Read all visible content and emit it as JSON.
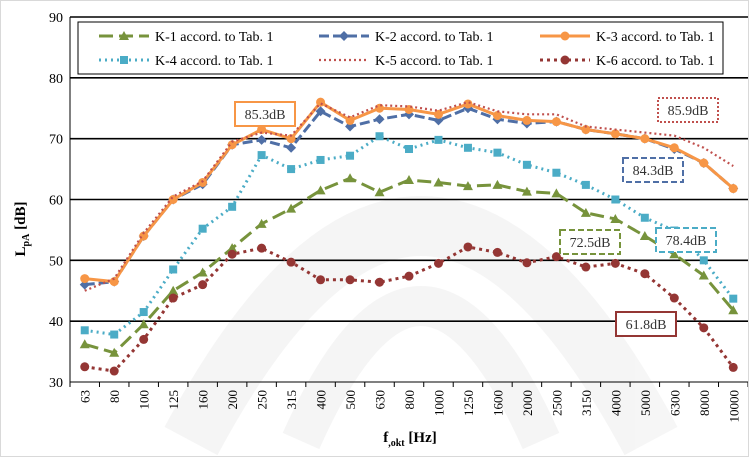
{
  "chart_data": {
    "type": "line",
    "title": "",
    "xlabel": "f,okt [Hz]",
    "ylabel": "LpA [dB]",
    "xlabel_parts": {
      "main": "f",
      "sub": ",okt",
      "unit": " [Hz]"
    },
    "ylabel_parts": {
      "main": "L",
      "sub": "pA",
      "unit": " [dB]"
    },
    "ylim": [
      30,
      90
    ],
    "yticks": [
      "30",
      "40",
      "50",
      "60",
      "70",
      "80",
      "90"
    ],
    "grid": "horizontal",
    "legend_position": "top",
    "categories": [
      "63",
      "80",
      "100",
      "125",
      "160",
      "200",
      "250",
      "315",
      "400",
      "500",
      "630",
      "800",
      "1000",
      "1250",
      "1600",
      "2000",
      "2500",
      "3150",
      "4000",
      "5000",
      "6300",
      "8000",
      "10000"
    ],
    "series": [
      {
        "name": "K-1 accord. to Tab. 1",
        "color": "#77933c",
        "dash": "14,6",
        "marker": "triangle",
        "values": [
          36.2,
          34.8,
          39.5,
          45.0,
          48.0,
          52.0,
          56.0,
          58.5,
          61.5,
          63.5,
          61.2,
          63.2,
          62.8,
          62.2,
          62.4,
          61.3,
          61.0,
          57.8,
          56.8,
          54.0,
          51.0,
          47.5,
          41.8
        ]
      },
      {
        "name": "K-2 accord. to Tab. 1",
        "color": "#4f6fa6",
        "dash": "10,4",
        "marker": "diamond",
        "values": [
          46.0,
          46.5,
          54.0,
          60.0,
          62.5,
          69.0,
          69.8,
          68.5,
          74.5,
          72.0,
          73.2,
          74.0,
          73.0,
          75.0,
          73.2,
          72.5,
          72.8,
          71.5,
          70.8,
          70.0,
          68.3,
          66.0,
          61.8
        ]
      },
      {
        "name": "K-3 accord. to Tab. 1",
        "color": "#f79646",
        "dash": "",
        "marker": "circle",
        "values": [
          47.0,
          46.5,
          54.0,
          60.0,
          62.8,
          69.0,
          71.5,
          70.0,
          76.0,
          73.0,
          75.0,
          74.8,
          74.0,
          75.7,
          73.8,
          73.0,
          72.8,
          71.5,
          70.8,
          70.0,
          68.5,
          66.0,
          61.8
        ]
      },
      {
        "name": "K-4 accord. to Tab. 1",
        "color": "#4bacc6",
        "dash": "2,4",
        "marker": "square",
        "values": [
          38.5,
          37.8,
          41.5,
          48.5,
          55.2,
          58.8,
          67.3,
          65.0,
          66.5,
          67.2,
          70.4,
          68.3,
          69.8,
          68.5,
          67.7,
          65.7,
          64.4,
          62.4,
          60.0,
          57.0,
          54.9,
          50.0,
          43.7
        ]
      },
      {
        "name": "K-5 accord. to Tab. 1",
        "color": "#c0504d",
        "dash": "2,3",
        "marker": "none",
        "values": [
          45.0,
          47.0,
          54.5,
          60.5,
          63.0,
          69.5,
          71.0,
          70.5,
          75.8,
          73.5,
          75.5,
          75.3,
          74.6,
          76.0,
          74.5,
          74.0,
          74.0,
          72.0,
          71.5,
          71.0,
          70.5,
          68.5,
          65.5
        ]
      },
      {
        "name": "K-6 accord. to Tab. 1",
        "color": "#943634",
        "dash": "3,4",
        "marker": "circle",
        "values": [
          32.5,
          31.8,
          37.0,
          43.8,
          46.0,
          51.0,
          52.0,
          49.7,
          46.8,
          46.8,
          46.4,
          47.4,
          49.5,
          52.2,
          51.3,
          49.6,
          50.6,
          48.9,
          49.5,
          47.8,
          43.8,
          38.9,
          32.4
        ]
      }
    ],
    "annotations": [
      {
        "text": "85.3dB",
        "color": "#f79646",
        "style": "solid"
      },
      {
        "text": "85.9dB",
        "color": "#c0504d",
        "style": "dotted"
      },
      {
        "text": "84.3dB",
        "color": "#4f6fa6",
        "style": "dashed"
      },
      {
        "text": "78.4dB",
        "color": "#4bacc6",
        "style": "dashed"
      },
      {
        "text": "72.5dB",
        "color": "#77933c",
        "style": "dashed"
      },
      {
        "text": "61.8dB",
        "color": "#943634",
        "style": "solid"
      }
    ]
  }
}
